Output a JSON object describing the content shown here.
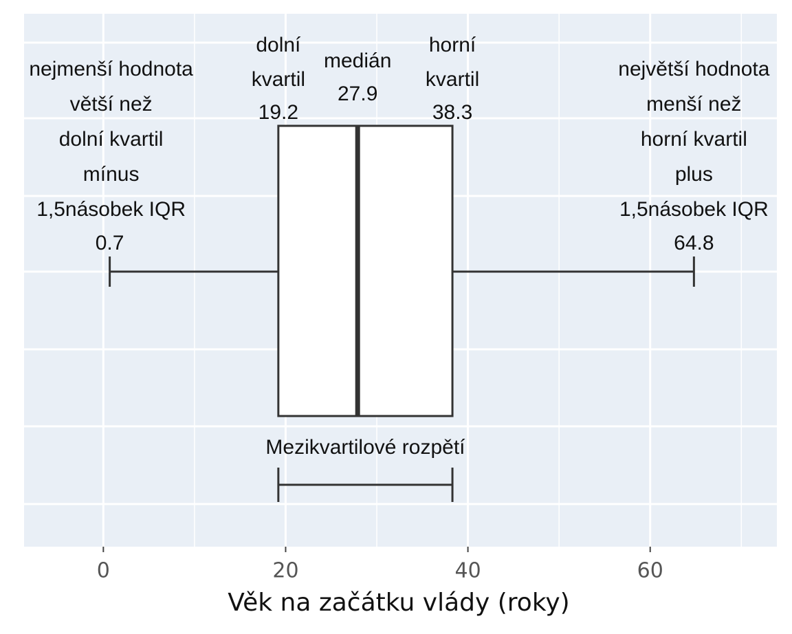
{
  "chart_data": {
    "type": "box",
    "x_label": "Věk na začátku vlády (roky)",
    "xlim": [
      -8.7,
      73.9
    ],
    "xticks": [
      0,
      20,
      40,
      60
    ],
    "minor_xticks": [
      10,
      30,
      50,
      70
    ],
    "grid": true,
    "box_color": "#ffffff",
    "line_color": "#333333",
    "boxes": [
      {
        "whislo": 0.7,
        "q1": 19.2,
        "med": 27.9,
        "q3": 38.3,
        "whishi": 64.8
      }
    ],
    "annotations": {
      "whislo": [
        "nejmenší hodnota",
        "větší než",
        "dolní kvartil",
        "mínus",
        "1,5násobek IQR"
      ],
      "q1": [
        "dolní",
        "kvartil"
      ],
      "med": [
        "medián"
      ],
      "q3": [
        "horní",
        "kvartil"
      ],
      "whishi": [
        "největší hodnota",
        "menší než",
        "horní kvartil",
        "plus",
        "1,5násobek IQR"
      ]
    },
    "iqr_label": "Mezikvartilové rozpětí"
  }
}
